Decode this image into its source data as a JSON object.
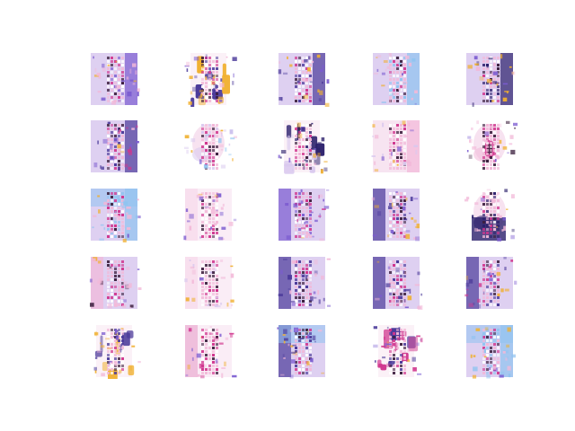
{
  "figure": {
    "grid": {
      "rows": 5,
      "cols": 5
    },
    "palette": {
      "background": "#ffffff",
      "navy": "#2b1f6b",
      "indigo": "#4b3a9a",
      "violet": "#7b5bd0",
      "lavender": "#d8c8ee",
      "pink": "#f2b8d8",
      "magenta": "#d0368e",
      "blush": "#f6dfee",
      "gold": "#f0b030",
      "sky": "#8fc3f0",
      "dark": "#3a1d3c"
    },
    "tiles": [
      {
        "kind": "panel-texture",
        "accents": [
          "violet",
          "pink"
        ]
      },
      {
        "kind": "scatter-figure",
        "accents": [
          "indigo",
          "gold"
        ]
      },
      {
        "kind": "panel-bright",
        "accents": [
          "indigo",
          "gold"
        ]
      },
      {
        "kind": "panel-texture",
        "accents": [
          "sky",
          "pink"
        ]
      },
      {
        "kind": "panel-dark",
        "accents": [
          "navy",
          "gold"
        ]
      },
      {
        "kind": "panel-dark",
        "accents": [
          "indigo",
          "magenta"
        ]
      },
      {
        "kind": "blob-sparse",
        "accents": [
          "lavender",
          "sky"
        ]
      },
      {
        "kind": "figure-dark",
        "accents": [
          "navy",
          "lavender"
        ]
      },
      {
        "kind": "panel-soft",
        "accents": [
          "pink",
          "lavender"
        ]
      },
      {
        "kind": "blob-face",
        "accents": [
          "pink",
          "dark"
        ]
      },
      {
        "kind": "panel-sky",
        "accents": [
          "sky",
          "pink"
        ]
      },
      {
        "kind": "panel-faint",
        "accents": [
          "pink",
          "violet"
        ]
      },
      {
        "kind": "panel-wide",
        "accents": [
          "violet",
          "magenta"
        ]
      },
      {
        "kind": "panel-bold",
        "accents": [
          "indigo",
          "gold"
        ]
      },
      {
        "kind": "blob-dark",
        "accents": [
          "navy",
          "pink"
        ]
      },
      {
        "kind": "panel-texture",
        "accents": [
          "pink",
          "dark"
        ]
      },
      {
        "kind": "panel-faint",
        "accents": [
          "pink",
          "lavender"
        ]
      },
      {
        "kind": "panel-wide",
        "accents": [
          "indigo",
          "pink"
        ]
      },
      {
        "kind": "panel-texture",
        "accents": [
          "indigo",
          "pink"
        ]
      },
      {
        "kind": "panel-bold",
        "accents": [
          "indigo",
          "magenta"
        ]
      },
      {
        "kind": "scatter-figure",
        "accents": [
          "indigo",
          "gold"
        ]
      },
      {
        "kind": "panel-faint",
        "accents": [
          "magenta",
          "pink"
        ]
      },
      {
        "kind": "panel-sky",
        "accents": [
          "indigo",
          "gold"
        ]
      },
      {
        "kind": "figure-dark",
        "accents": [
          "indigo",
          "magenta"
        ]
      },
      {
        "kind": "panel-sky",
        "accents": [
          "sky",
          "gold"
        ]
      }
    ]
  }
}
